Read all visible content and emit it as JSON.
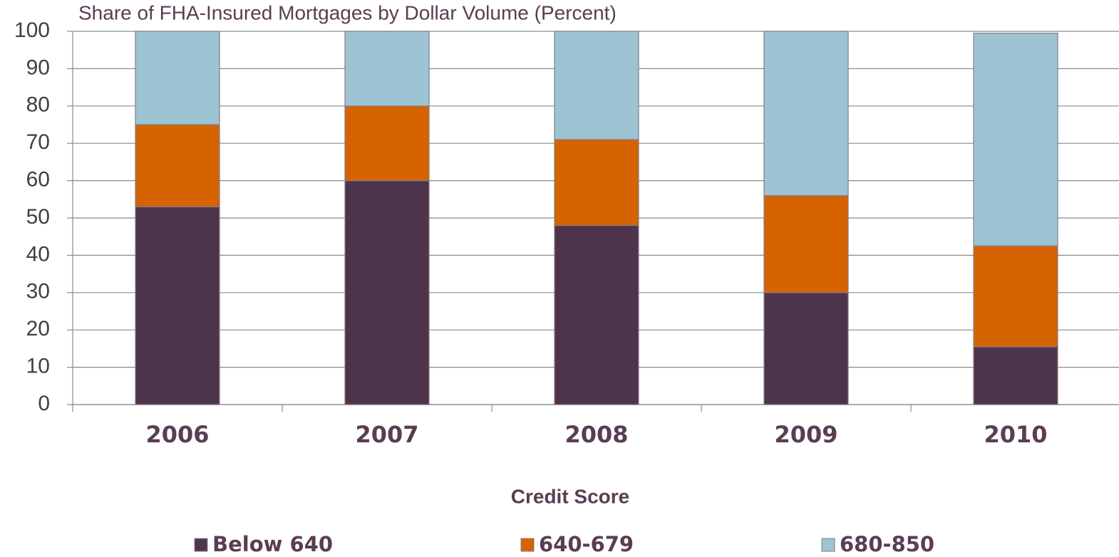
{
  "chart_data": {
    "type": "stacked_bar",
    "title": "Share of FHA-Insured Mortgages by Dollar Volume (Percent)",
    "x_label": "Credit Score",
    "categories": [
      "2006",
      "2007",
      "2008",
      "2009",
      "2010"
    ],
    "series": [
      {
        "name": "Below 640",
        "color": "#4e344b",
        "values": [
          53,
          60,
          48,
          30,
          15.5
        ]
      },
      {
        "name": "640-679",
        "color": "#d56300",
        "values": [
          22,
          20,
          23,
          26,
          27
        ]
      },
      {
        "name": "680-850",
        "color": "#9cc4d3",
        "values": [
          25,
          20,
          29,
          44,
          57
        ]
      }
    ],
    "ylim": [
      0,
      100
    ],
    "yticks": [
      0,
      10,
      20,
      30,
      40,
      50,
      60,
      70,
      80,
      90,
      100
    ],
    "grid": true
  }
}
